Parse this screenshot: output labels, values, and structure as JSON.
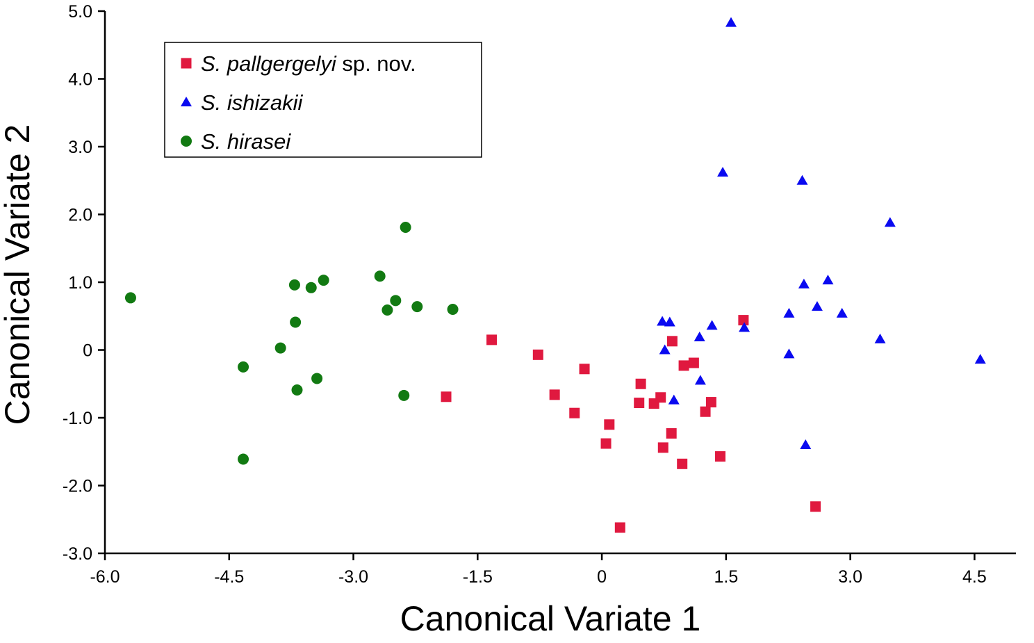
{
  "chart_data": {
    "type": "scatter",
    "title": "",
    "xlabel": "Canonical Variate 1",
    "ylabel": "Canonical Variate 2",
    "xlim": [
      -6.0,
      5.0
    ],
    "ylim": [
      -3.0,
      5.0
    ],
    "xticks": [
      {
        "value": -6.0,
        "label": "-6.0"
      },
      {
        "value": -4.5,
        "label": "-4.5"
      },
      {
        "value": -3.0,
        "label": "-3.0"
      },
      {
        "value": -1.5,
        "label": "-1.5"
      },
      {
        "value": 0,
        "label": "0"
      },
      {
        "value": 1.5,
        "label": "1.5"
      },
      {
        "value": 3.0,
        "label": "3.0"
      },
      {
        "value": 4.5,
        "label": "4.5"
      }
    ],
    "yticks": [
      {
        "value": 5.0,
        "label": "5.0"
      },
      {
        "value": 4.0,
        "label": "4.0"
      },
      {
        "value": 3.0,
        "label": "3.0"
      },
      {
        "value": 2.0,
        "label": "2.0"
      },
      {
        "value": 1.0,
        "label": "1.0"
      },
      {
        "value": 0,
        "label": "0"
      },
      {
        "value": -1.0,
        "label": "-1.0"
      },
      {
        "value": -2.0,
        "label": "-2.0"
      },
      {
        "value": -3.0,
        "label": "-3.0"
      }
    ],
    "grid": false,
    "legend_position": "top-left",
    "series": [
      {
        "name_italic": "S. pallgergelyi",
        "name_suffix": " sp. nov.",
        "marker": "square",
        "color": "#e0193f",
        "points": [
          [
            -1.88,
            -0.69
          ],
          [
            -1.33,
            0.15
          ],
          [
            -0.77,
            -0.07
          ],
          [
            -0.57,
            -0.66
          ],
          [
            -0.33,
            -0.93
          ],
          [
            -0.21,
            -0.28
          ],
          [
            0.05,
            -1.38
          ],
          [
            0.09,
            -1.1
          ],
          [
            0.22,
            -2.62
          ],
          [
            0.45,
            -0.78
          ],
          [
            0.47,
            -0.5
          ],
          [
            0.63,
            -0.79
          ],
          [
            0.71,
            -0.7
          ],
          [
            0.74,
            -1.44
          ],
          [
            0.84,
            -1.23
          ],
          [
            0.85,
            0.13
          ],
          [
            0.97,
            -1.68
          ],
          [
            0.99,
            -0.23
          ],
          [
            1.11,
            -0.19
          ],
          [
            1.25,
            -0.91
          ],
          [
            1.32,
            -0.77
          ],
          [
            1.43,
            -1.57
          ],
          [
            1.71,
            0.44
          ],
          [
            2.58,
            -2.31
          ]
        ]
      },
      {
        "name_italic": "S. ishizakii",
        "name_suffix": "",
        "marker": "triangle",
        "color": "#0a0af0",
        "points": [
          [
            0.73,
            0.42
          ],
          [
            0.76,
            0.0
          ],
          [
            0.82,
            0.41
          ],
          [
            0.87,
            -0.74
          ],
          [
            1.18,
            0.19
          ],
          [
            1.19,
            -0.45
          ],
          [
            1.33,
            0.36
          ],
          [
            1.46,
            2.62
          ],
          [
            1.56,
            4.83
          ],
          [
            1.72,
            0.33
          ],
          [
            2.26,
            0.54
          ],
          [
            2.26,
            -0.06
          ],
          [
            2.42,
            2.5
          ],
          [
            2.44,
            0.97
          ],
          [
            2.46,
            -1.4
          ],
          [
            2.6,
            0.64
          ],
          [
            2.73,
            1.03
          ],
          [
            2.9,
            0.54
          ],
          [
            3.36,
            0.16
          ],
          [
            3.48,
            1.88
          ],
          [
            4.57,
            -0.14
          ]
        ]
      },
      {
        "name_italic": "S. hirasei",
        "name_suffix": "",
        "marker": "circle",
        "color": "#127a12",
        "points": [
          [
            -5.69,
            0.77
          ],
          [
            -4.33,
            -0.25
          ],
          [
            -4.33,
            -1.61
          ],
          [
            -3.88,
            0.03
          ],
          [
            -3.71,
            0.96
          ],
          [
            -3.7,
            0.41
          ],
          [
            -3.68,
            -0.59
          ],
          [
            -3.51,
            0.92
          ],
          [
            -3.44,
            -0.42
          ],
          [
            -3.36,
            1.03
          ],
          [
            -2.68,
            1.09
          ],
          [
            -2.59,
            0.59
          ],
          [
            -2.49,
            0.73
          ],
          [
            -2.39,
            -0.67
          ],
          [
            -2.37,
            1.81
          ],
          [
            -2.23,
            0.64
          ],
          [
            -1.8,
            0.6
          ]
        ]
      }
    ]
  }
}
